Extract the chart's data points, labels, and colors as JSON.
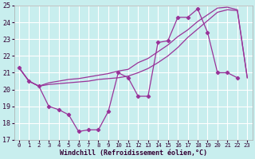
{
  "xlabel": "Windchill (Refroidissement éolien,°C)",
  "xlim": [
    -0.5,
    23.5
  ],
  "ylim": [
    17,
    25
  ],
  "yticks": [
    17,
    18,
    19,
    20,
    21,
    22,
    23,
    24,
    25
  ],
  "xticks": [
    0,
    1,
    2,
    3,
    4,
    5,
    6,
    7,
    8,
    9,
    10,
    11,
    12,
    13,
    14,
    15,
    16,
    17,
    18,
    19,
    20,
    21,
    22,
    23
  ],
  "background_color": "#c8eeee",
  "grid_color": "#ffffff",
  "line_color": "#993399",
  "wc_x": [
    0,
    1,
    2,
    3,
    4,
    5,
    6,
    7,
    8,
    9,
    10,
    11,
    12,
    13,
    14,
    15,
    16,
    17,
    18,
    19,
    20,
    21,
    22
  ],
  "wc_y": [
    21.3,
    20.5,
    20.2,
    19.0,
    18.8,
    18.5,
    17.5,
    17.6,
    17.6,
    18.7,
    21.0,
    20.7,
    19.6,
    19.6,
    22.8,
    22.9,
    24.3,
    24.3,
    24.8,
    23.4,
    21.0,
    21.0,
    20.7
  ],
  "t1_x": [
    0,
    1,
    2,
    3,
    4,
    5,
    6,
    7,
    8,
    9,
    10,
    11,
    12,
    13,
    14,
    15,
    16,
    17,
    18,
    19,
    20,
    21,
    22,
    23
  ],
  "t1_y": [
    21.3,
    20.5,
    20.2,
    20.3,
    20.35,
    20.4,
    20.45,
    20.5,
    20.6,
    20.65,
    20.7,
    20.8,
    21.0,
    21.25,
    21.6,
    22.0,
    22.5,
    23.1,
    23.6,
    24.1,
    24.6,
    24.75,
    24.7,
    20.7
  ],
  "t2_x": [
    0,
    1,
    2,
    3,
    4,
    5,
    6,
    7,
    8,
    9,
    10,
    11,
    12,
    13,
    14,
    15,
    16,
    17,
    18,
    19,
    20,
    21,
    22,
    23
  ],
  "t2_y": [
    21.3,
    20.5,
    20.2,
    20.4,
    20.5,
    20.6,
    20.65,
    20.75,
    20.85,
    20.95,
    21.1,
    21.2,
    21.6,
    21.85,
    22.25,
    22.65,
    23.15,
    23.55,
    24.05,
    24.45,
    24.85,
    24.9,
    24.75,
    20.7
  ]
}
